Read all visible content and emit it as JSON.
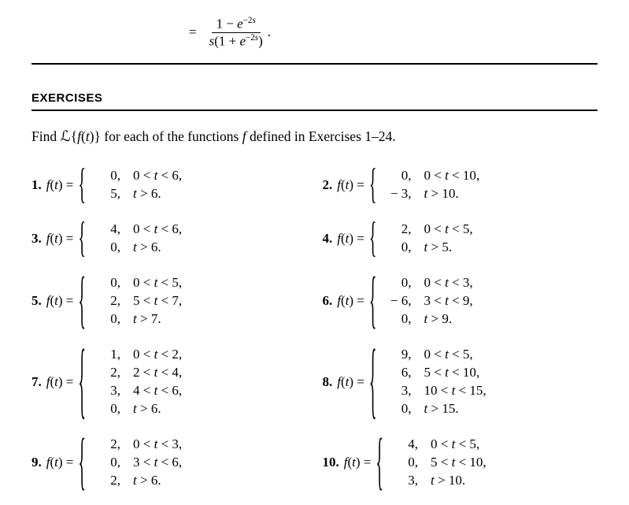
{
  "top_equation": {
    "prefix": "=",
    "numerator_html": "1 − <span class='italic'>e</span><span class='sup'>−2<span class='italic'>s</span></span>",
    "denominator_html": "<span class='italic'>s</span>(1 + <span class='italic'>e</span><span class='sup'>−2<span class='italic'>s</span></span>)",
    "trailing": "."
  },
  "section_title": "EXERCISES",
  "intro_html": "Find <span class='scr'>ℒ</span>{<span class='italic'>f</span>(<span class='italic'>t</span>)} for each of the functions <span class='italic'>f</span> defined in Exercises 1–24.",
  "ft_html": "<span class='italic'>f</span>(<span class='italic'>t</span>) = ",
  "exercises": [
    {
      "n": "1.",
      "cases": [
        {
          "v": "0,",
          "c": "0 < <span class='italic'>t</span> < 6,"
        },
        {
          "v": "5,",
          "c": "<span class='italic'>t</span> > 6."
        }
      ]
    },
    {
      "n": "2.",
      "cases": [
        {
          "v": "0,",
          "c": "0 < <span class='italic'>t</span> < 10,"
        },
        {
          "v": "− 3,",
          "c": "<span class='italic'>t</span> > 10."
        }
      ]
    },
    {
      "n": "3.",
      "cases": [
        {
          "v": "4,",
          "c": "0 < <span class='italic'>t</span> < 6,"
        },
        {
          "v": "0,",
          "c": "<span class='italic'>t</span> > 6."
        }
      ]
    },
    {
      "n": "4.",
      "cases": [
        {
          "v": "2,",
          "c": "0 < <span class='italic'>t</span> < 5,"
        },
        {
          "v": "0,",
          "c": "<span class='italic'>t</span> > 5."
        }
      ]
    },
    {
      "n": "5.",
      "cases": [
        {
          "v": "0,",
          "c": "0 < <span class='italic'>t</span> < 5,"
        },
        {
          "v": "2,",
          "c": "5 < <span class='italic'>t</span> < 7,"
        },
        {
          "v": "0,",
          "c": "<span class='italic'>t</span> > 7."
        }
      ]
    },
    {
      "n": "6.",
      "cases": [
        {
          "v": "0,",
          "c": "0 < <span class='italic'>t</span> < 3,"
        },
        {
          "v": "− 6,",
          "c": "3 < <span class='italic'>t</span> < 9,"
        },
        {
          "v": "0,",
          "c": "<span class='italic'>t</span> > 9."
        }
      ]
    },
    {
      "n": "7.",
      "cases": [
        {
          "v": "1,",
          "c": "0 < <span class='italic'>t</span> < 2,"
        },
        {
          "v": "2,",
          "c": "2 < <span class='italic'>t</span> < 4,"
        },
        {
          "v": "3,",
          "c": "4 < <span class='italic'>t</span> < 6,"
        },
        {
          "v": "0,",
          "c": "<span class='italic'>t</span> > 6."
        }
      ]
    },
    {
      "n": "8.",
      "cases": [
        {
          "v": "9,",
          "c": "0 < <span class='italic'>t</span> < 5,"
        },
        {
          "v": "6,",
          "c": "5 < <span class='italic'>t</span> < 10,"
        },
        {
          "v": "3,",
          "c": "10 < <span class='italic'>t</span> < 15,"
        },
        {
          "v": "0,",
          "c": "<span class='italic'>t</span> > 15."
        }
      ]
    },
    {
      "n": "9.",
      "cases": [
        {
          "v": "2,",
          "c": "0 < <span class='italic'>t</span> < 3,"
        },
        {
          "v": "0,",
          "c": "3 < <span class='italic'>t</span> < 6,"
        },
        {
          "v": "2,",
          "c": "<span class='italic'>t</span> > 6."
        }
      ]
    },
    {
      "n": "10.",
      "cases": [
        {
          "v": "4,",
          "c": "0 < <span class='italic'>t</span> < 5,"
        },
        {
          "v": "0,",
          "c": "5 < <span class='italic'>t</span> < 10,"
        },
        {
          "v": "3,",
          "c": "<span class='italic'>t</span> > 10."
        }
      ]
    }
  ]
}
